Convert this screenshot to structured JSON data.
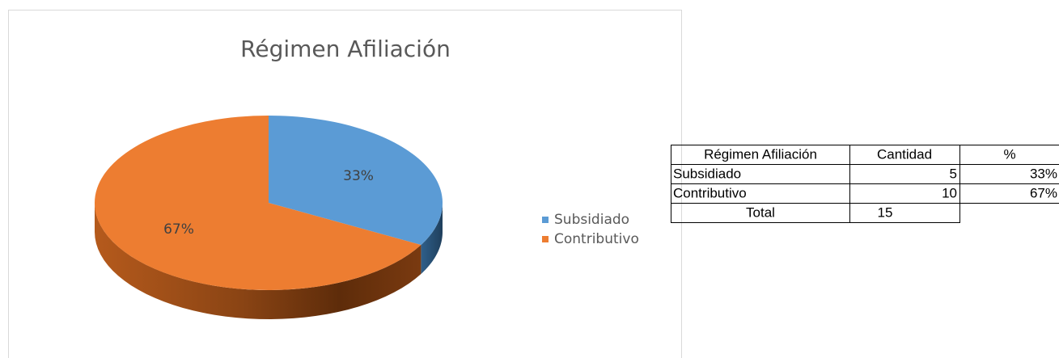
{
  "chart_data": {
    "type": "pie",
    "title": "Régimen Afiliación",
    "categories": [
      "Subsidiado",
      "Contributivo"
    ],
    "values": [
      33,
      67
    ],
    "value_labels": [
      "33%",
      "67%"
    ],
    "colors": [
      "#5b9bd5",
      "#ed7d31"
    ],
    "legend": "right"
  },
  "table": {
    "header": [
      "Régimen Afiliación",
      "Cantidad",
      "%"
    ],
    "rows": [
      [
        "Subsidiado",
        5,
        "33%"
      ],
      [
        "Contributivo",
        10,
        "67%"
      ],
      [
        "Total",
        15
      ]
    ]
  }
}
